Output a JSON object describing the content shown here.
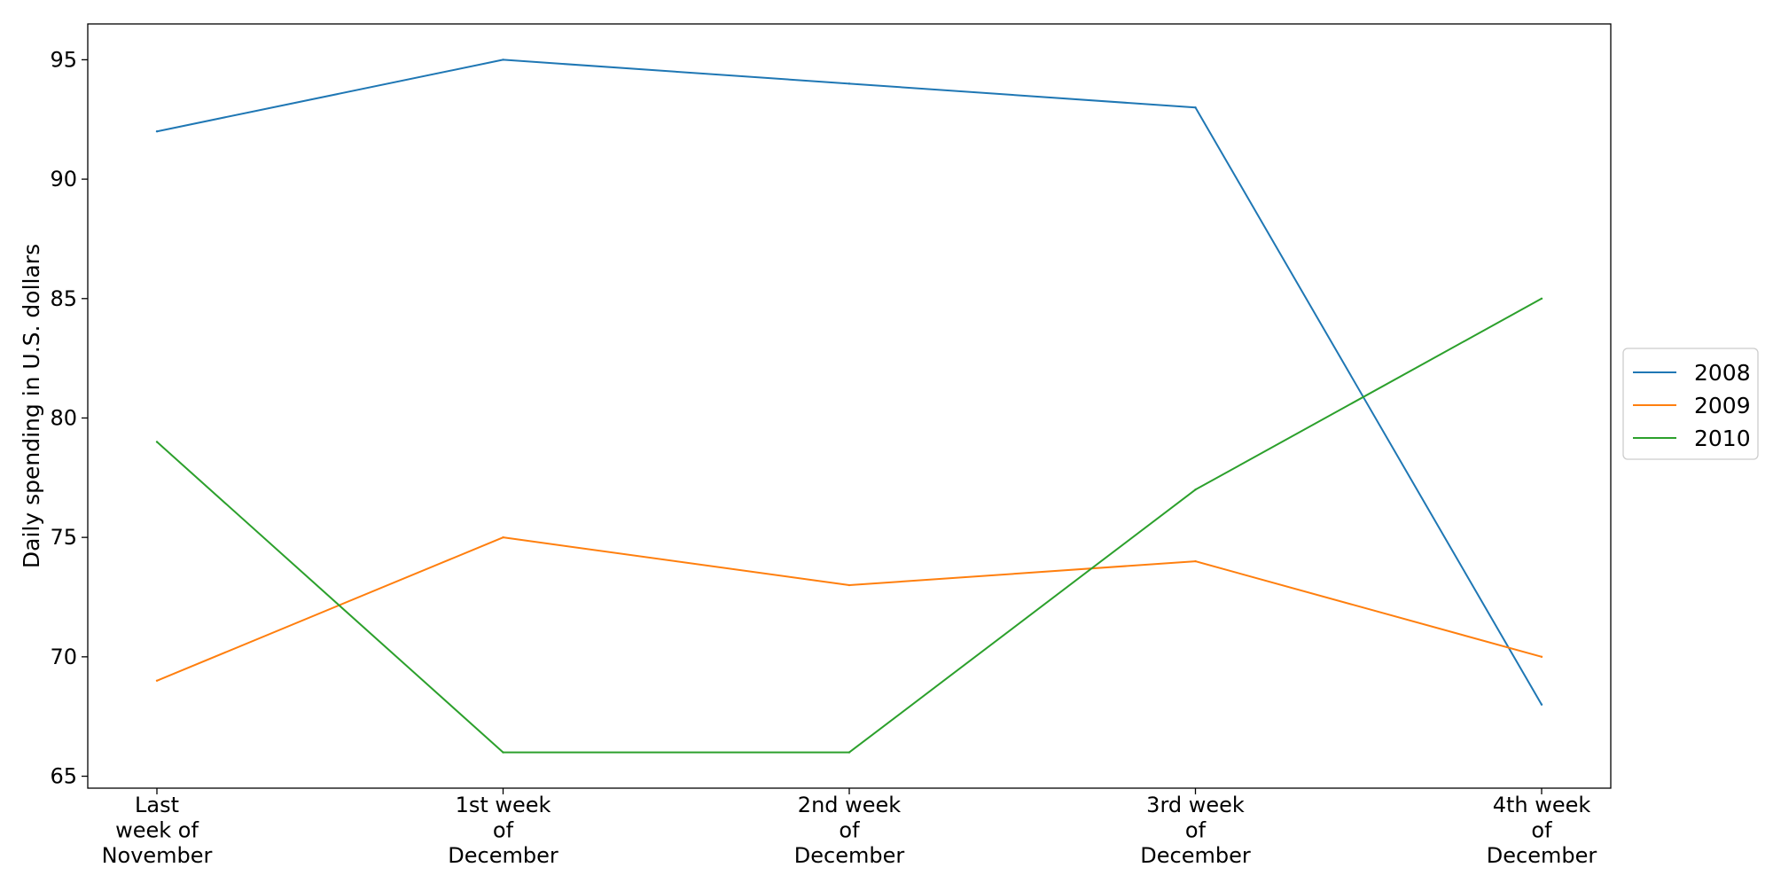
{
  "chart_data": {
    "type": "line",
    "title": "",
    "xlabel": "",
    "ylabel": "Daily spending in U.S. dollars",
    "categories": [
      [
        "Last",
        "week of",
        "November"
      ],
      [
        "1st week",
        "of",
        "December"
      ],
      [
        "2nd week",
        "of",
        "December"
      ],
      [
        "3rd week",
        "of",
        "December"
      ],
      [
        "4th week",
        "of",
        "December"
      ]
    ],
    "yticks": [
      65,
      70,
      75,
      80,
      85,
      90,
      95
    ],
    "ylim": [
      64.5,
      96.5
    ],
    "grid": false,
    "legend_position": "right",
    "series": [
      {
        "name": "2008",
        "color": "#1f77b4",
        "values": [
          92,
          95,
          94,
          93,
          68
        ]
      },
      {
        "name": "2009",
        "color": "#ff7f0e",
        "values": [
          69,
          75,
          73,
          74,
          70
        ]
      },
      {
        "name": "2010",
        "color": "#2ca02c",
        "values": [
          79,
          66,
          66,
          77,
          85
        ]
      }
    ]
  }
}
